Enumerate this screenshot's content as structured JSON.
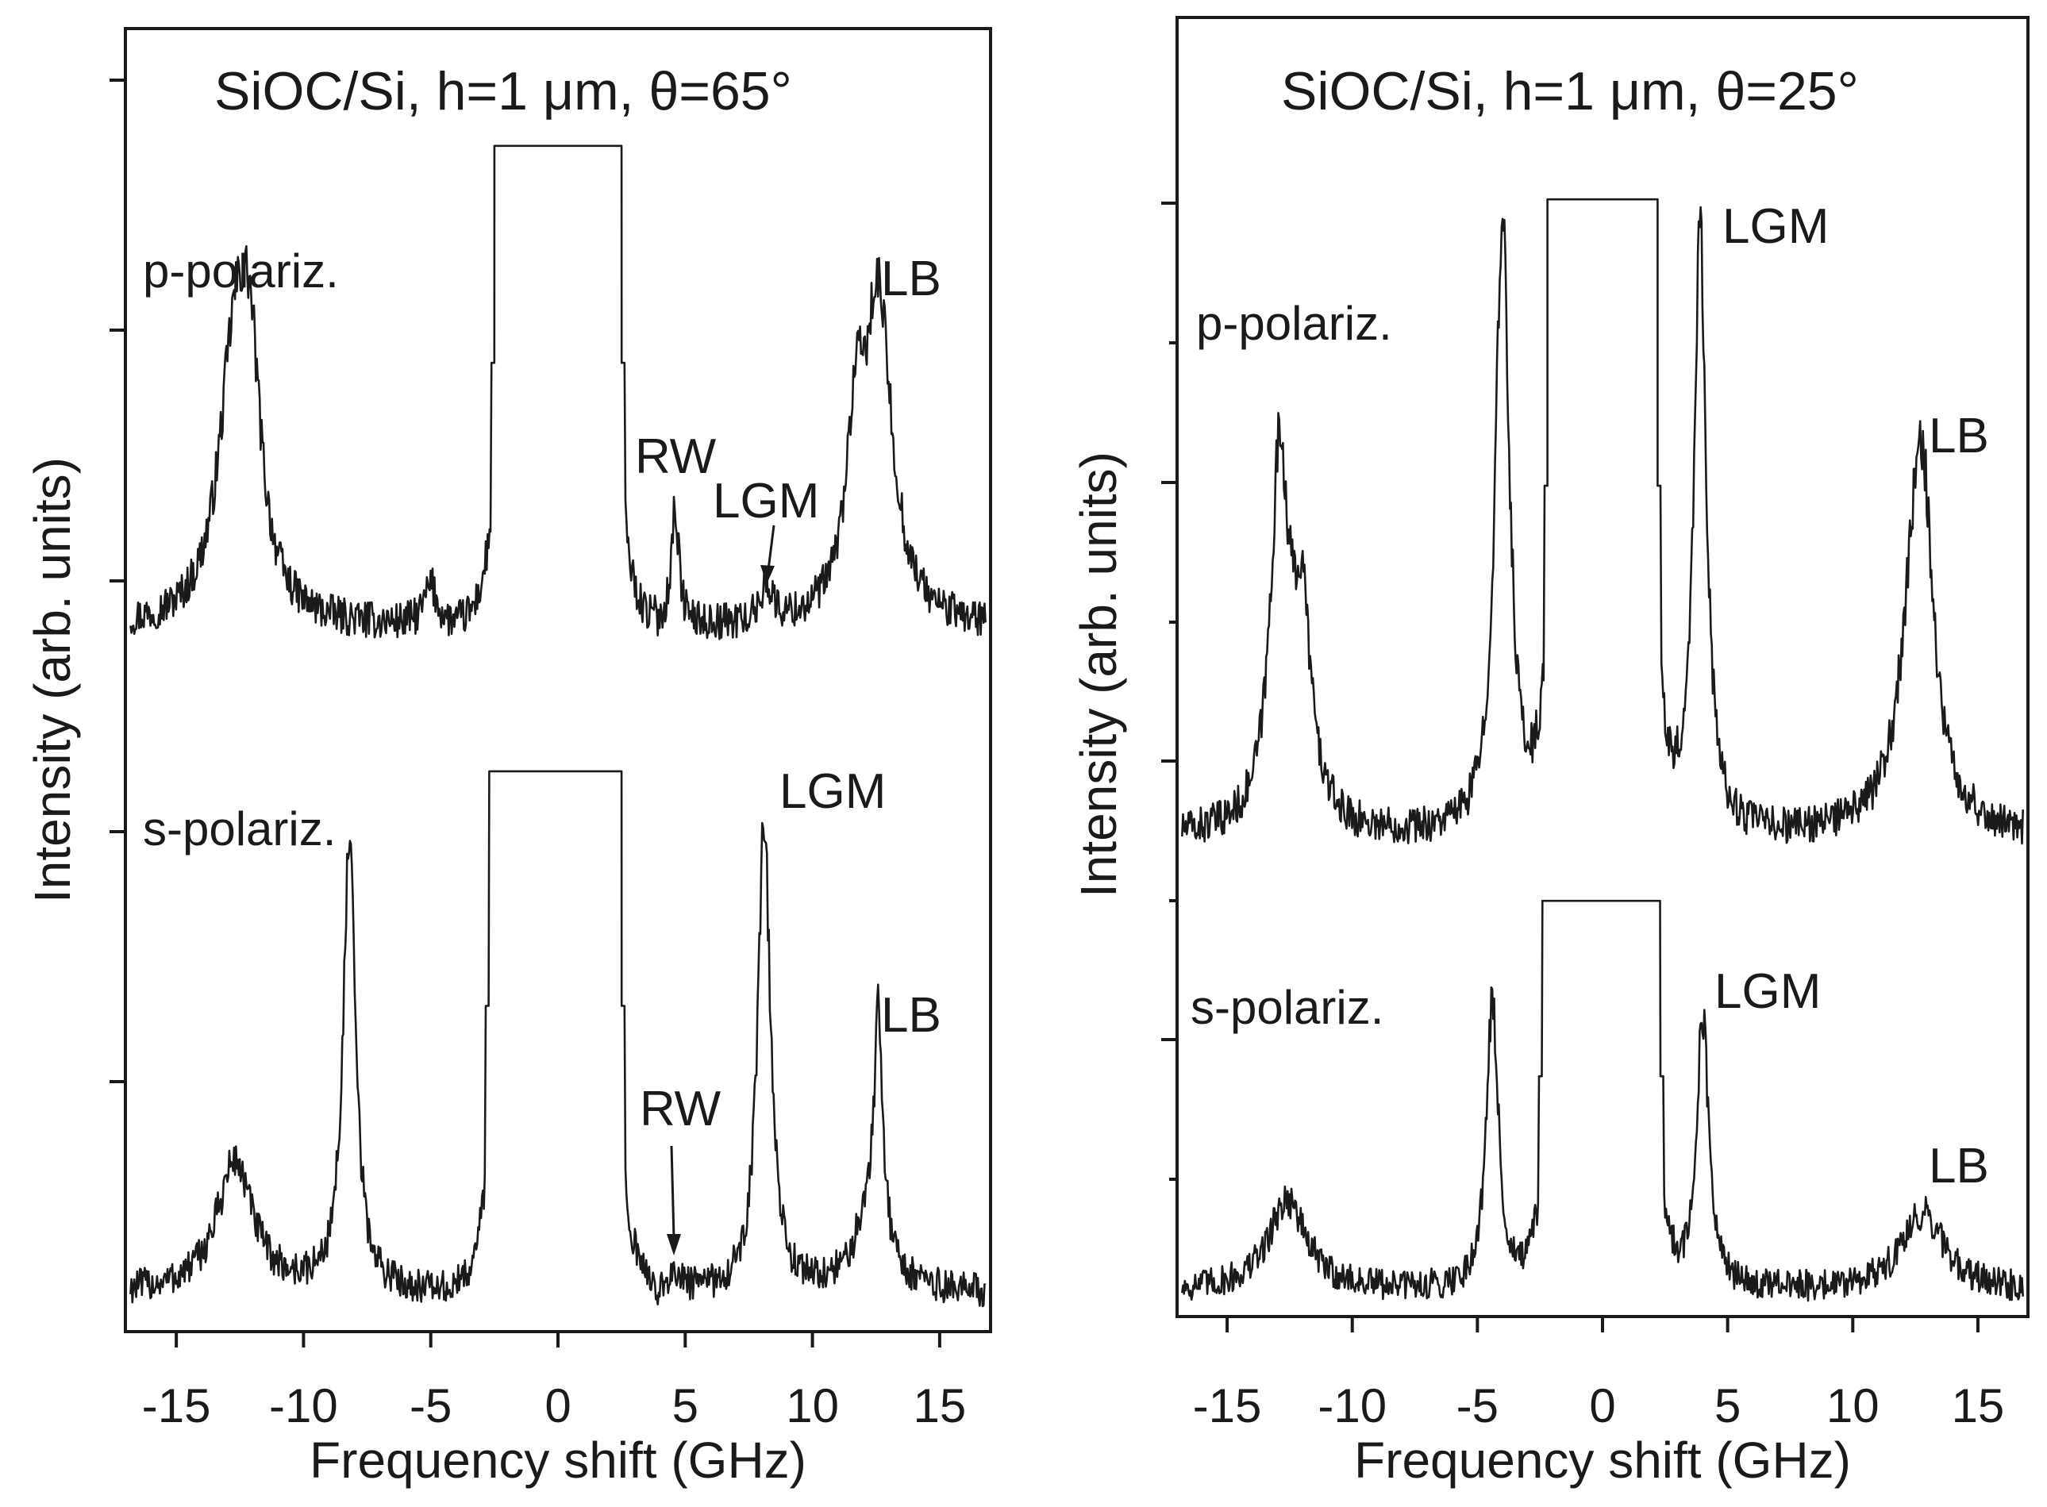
{
  "chart_data": [
    {
      "type": "line",
      "title": "SiOC/Si,  h=1 μm,  θ=65°",
      "xlabel": "Frequency shift (GHz)",
      "ylabel": "Intensity (arb. units)",
      "xlim": [
        -17,
        17
      ],
      "ylim": [
        0,
        100
      ],
      "xticks": [
        -15,
        -10,
        -5,
        0,
        5,
        10,
        15
      ],
      "xtick_labels": [
        "-15",
        "-10",
        "-5",
        "0",
        "5",
        "10",
        "15"
      ],
      "y_minor_ticks": 5,
      "series": [
        {
          "name": "p-polariz.",
          "baseline": 54,
          "noise": 1.4,
          "central_window": {
            "xmin": -2.5,
            "xmax": 2.5,
            "top": 91
          },
          "peaks": [
            {
              "x": -12.7,
              "height": 20,
              "width": 0.75,
              "label": ""
            },
            {
              "x": -12.1,
              "height": 14,
              "width": 0.5,
              "label": ""
            },
            {
              "x": -5,
              "height": 3,
              "width": 0.3,
              "label": ""
            },
            {
              "x": 4.6,
              "height": 9,
              "width": 0.18,
              "label": "RW"
            },
            {
              "x": 8.2,
              "height": 3,
              "width": 0.25,
              "label": "LGM"
            },
            {
              "x": 12.6,
              "height": 24,
              "width": 0.65,
              "label": "LB"
            },
            {
              "x": 11.7,
              "height": 12,
              "width": 0.45,
              "label": ""
            }
          ]
        },
        {
          "name": "s-polariz.",
          "baseline": 3,
          "noise": 1.3,
          "central_window": {
            "xmin": -2.7,
            "xmax": 2.5,
            "top": 43
          },
          "peaks": [
            {
              "x": -12.7,
              "height": 10,
              "width": 0.85,
              "label": ""
            },
            {
              "x": -8.2,
              "height": 34,
              "width": 0.3,
              "label": ""
            },
            {
              "x": 4.7,
              "height": 1.5,
              "width": 0.2,
              "label": "RW"
            },
            {
              "x": 8.1,
              "height": 36,
              "width": 0.3,
              "label": "LGM"
            },
            {
              "x": 12.6,
              "height": 17,
              "width": 0.2,
              "label": "LB"
            },
            {
              "x": 12.3,
              "height": 6,
              "width": 0.7,
              "label": ""
            }
          ]
        }
      ],
      "annotations": [
        {
          "text": "p-polariz.",
          "target": "series-0"
        },
        {
          "text": "RW",
          "x": 4.7,
          "y": 70
        },
        {
          "text": "LGM",
          "x": 8.8,
          "y": 66,
          "arrow_to": [
            8.2,
            58
          ]
        },
        {
          "text": "LB",
          "x": 14.4,
          "y": 85
        },
        {
          "text": "s-polariz.",
          "target": "series-1"
        },
        {
          "text": "LGM",
          "x": 11.5,
          "y": 43
        },
        {
          "text": "RW",
          "x": 5.2,
          "y": 18,
          "arrow_to": [
            4.7,
            6
          ]
        },
        {
          "text": "LB",
          "x": 14.4,
          "y": 25
        }
      ]
    },
    {
      "type": "line",
      "title": "SiOC/Si,  h=1 μm,  θ=25°",
      "xlabel": "Frequency shift (GHz)",
      "ylabel": "Intensity (arb. units)",
      "xlim": [
        -17,
        17
      ],
      "ylim": [
        0,
        100
      ],
      "xticks": [
        -15,
        -10,
        -5,
        0,
        5,
        10,
        15
      ],
      "xtick_labels": [
        "-15",
        "-10",
        "-5",
        "0",
        "5",
        "10",
        "15"
      ],
      "y_minor_ticks": 8,
      "series": [
        {
          "name": "p-polariz.",
          "baseline": 37,
          "noise": 1.4,
          "central_window": {
            "xmin": -2.2,
            "xmax": 2.2,
            "top": 86
          },
          "peaks": [
            {
              "x": -12.9,
              "height": 28,
              "width": 0.45,
              "label": ""
            },
            {
              "x": -12.0,
              "height": 15,
              "width": 0.45,
              "label": ""
            },
            {
              "x": -4.0,
              "height": 47,
              "width": 0.35,
              "label": ""
            },
            {
              "x": 3.9,
              "height": 47,
              "width": 0.3,
              "label": "LGM"
            },
            {
              "x": 12.6,
              "height": 25,
              "width": 0.7,
              "label": "LB"
            },
            {
              "x": 12.9,
              "height": 7,
              "width": 0.35,
              "label": ""
            }
          ]
        },
        {
          "name": "s-polariz.",
          "baseline": 2,
          "noise": 1.2,
          "central_window": {
            "xmin": -2.4,
            "xmax": 2.3,
            "top": 32
          },
          "peaks": [
            {
              "x": -12.6,
              "height": 7,
              "width": 0.9,
              "label": ""
            },
            {
              "x": -4.4,
              "height": 22,
              "width": 0.3,
              "label": ""
            },
            {
              "x": 4.0,
              "height": 21,
              "width": 0.3,
              "label": "LGM"
            },
            {
              "x": 12.8,
              "height": 6,
              "width": 1.0,
              "label": "LB"
            }
          ]
        }
      ],
      "annotations": [
        {
          "text": "p-polariz.",
          "target": "series-0"
        },
        {
          "text": "LGM",
          "x": 7.1,
          "y": 87
        },
        {
          "text": "LB",
          "x": 14.3,
          "y": 64
        },
        {
          "text": "s-polariz.",
          "target": "series-1"
        },
        {
          "text": "LGM",
          "x": 6.8,
          "y": 24
        },
        {
          "text": "LB",
          "x": 14.3,
          "y": 11
        }
      ]
    }
  ]
}
